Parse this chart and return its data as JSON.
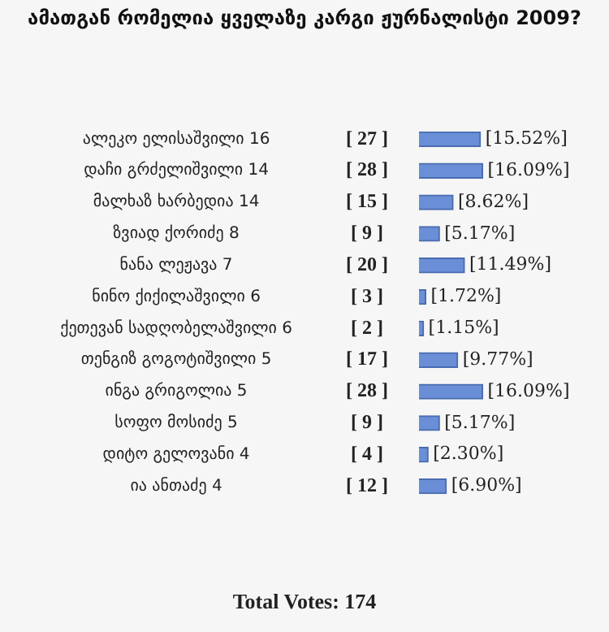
{
  "chart_data": {
    "type": "bar",
    "orientation": "horizontal",
    "title": "ამათგან რომელია ყველაზე კარგი ჟურნალისტი 2009?",
    "categories": [
      "ალეკო ელისაშვილი 16",
      "დაჩი გრძელიშვილი 14",
      "მალხაზ ხარბედია 14",
      "ზვიად ქორიძე 8",
      "ნანა ლეჟავა 7",
      "ნინო ქიქილაშვილი 6",
      "ქეთევან სადღობელაშვილი 6",
      "თენგიზ გოგოტიშვილი 5",
      "ინგა გრიგოლია 5",
      "სოფო მოსიძე 5",
      "დიტო გელოვანი 4",
      "ია ანთაძე 4"
    ],
    "values": [
      15.52,
      16.09,
      8.62,
      5.17,
      11.49,
      1.72,
      1.15,
      9.77,
      16.09,
      5.17,
      2.3,
      6.9
    ],
    "value_labels": [
      "[15.52%]",
      "[16.09%]",
      "[8.62%]",
      "[5.17%]",
      "[11.49%]",
      "[1.72%]",
      "[1.15%]",
      "[9.77%]",
      "[16.09%]",
      "[5.17%]",
      "[2.30%]",
      "[6.90%]"
    ],
    "color": "#6b8fd6",
    "xlim": [
      0,
      48
    ],
    "legend": false,
    "annotations": [
      "[ 27 ]",
      "[ 28 ]",
      "[ 15 ]",
      "[ 9 ]",
      "[ 20 ]",
      "[ 3 ]",
      "[ 2 ]",
      "[ 17 ]",
      "[ 28 ]",
      "[ 9 ]",
      "[ 4 ]",
      "[ 12 ]",
      "Total Votes: 174"
    ]
  }
}
